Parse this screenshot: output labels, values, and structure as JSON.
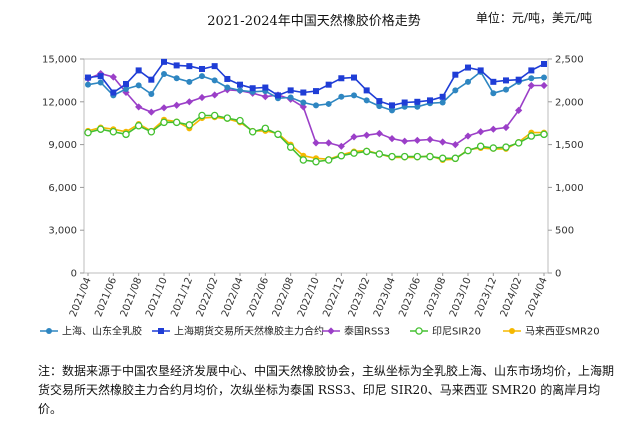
{
  "chart_data": {
    "type": "line",
    "title": "2021-2024年中国天然橡胶价格走势",
    "unit_label": "单位：元/吨，美元/吨",
    "x": [
      "2021/04",
      "2021/05",
      "2021/06",
      "2021/07",
      "2021/08",
      "2021/09",
      "2021/10",
      "2021/11",
      "2021/12",
      "2022/01",
      "2022/02",
      "2022/03",
      "2022/04",
      "2022/05",
      "2022/06",
      "2022/07",
      "2022/08",
      "2022/09",
      "2022/10",
      "2022/11",
      "2022/12",
      "2023/01",
      "2023/02",
      "2023/03",
      "2023/04",
      "2023/05",
      "2023/06",
      "2023/07",
      "2023/08",
      "2023/09",
      "2023/10",
      "2023/11",
      "2023/12",
      "2024/01",
      "2024/02",
      "2024/03",
      "2024/04"
    ],
    "x_tick_labels": [
      "2021/04",
      "2021/06",
      "2021/08",
      "2021/10",
      "2021/12",
      "2022/02",
      "2022/04",
      "2022/06",
      "2022/08",
      "2022/10",
      "2022/12",
      "2023/02",
      "2023/04",
      "2023/06",
      "2023/08",
      "2023/10",
      "2023/12",
      "2024/02",
      "2024/04"
    ],
    "y_left": {
      "min": 0,
      "max": 15000,
      "ticks": [
        "0",
        "3,000",
        "6,000",
        "9,000",
        "12,000",
        "15,000"
      ]
    },
    "y_right": {
      "min": 0,
      "max": 2500,
      "ticks": [
        "0",
        "500",
        "1,000",
        "1,500",
        "2,000",
        "2,500"
      ]
    },
    "grid": false,
    "legend_position": "bottom",
    "series": [
      {
        "name": "上海、山东全乳胶",
        "axis": "left",
        "color": "#2E86C1",
        "marker": "circle",
        "values": [
          13200,
          13350,
          12450,
          12900,
          13150,
          12550,
          13950,
          13650,
          13400,
          13800,
          13500,
          13000,
          12800,
          12700,
          12750,
          12250,
          12300,
          11950,
          11750,
          11850,
          12350,
          12450,
          12100,
          11700,
          11400,
          11650,
          11650,
          11900,
          11950,
          12800,
          13400,
          14100,
          12600,
          12850,
          13400,
          13650,
          13700
        ]
      },
      {
        "name": "上海期货交易所天然橡胶主力合约",
        "axis": "left",
        "color": "#1F3DD6",
        "marker": "square",
        "values": [
          13700,
          13800,
          12650,
          13250,
          14200,
          13550,
          14800,
          14550,
          14500,
          14300,
          14500,
          13600,
          13200,
          12950,
          13000,
          12450,
          12800,
          12650,
          12750,
          13200,
          13650,
          13700,
          12800,
          12050,
          11750,
          11950,
          12000,
          12100,
          12350,
          13900,
          14400,
          14200,
          13400,
          13500,
          13550,
          14200,
          14650
        ]
      },
      {
        "name": "泰国RSS3",
        "axis": "right",
        "color": "#9B3FC8",
        "marker": "diamond",
        "values": [
          2270,
          2330,
          2290,
          2110,
          1940,
          1880,
          1930,
          1960,
          2000,
          2050,
          2080,
          2140,
          2130,
          2100,
          2060,
          2080,
          2030,
          1940,
          1520,
          1520,
          1480,
          1590,
          1610,
          1630,
          1570,
          1540,
          1550,
          1560,
          1530,
          1500,
          1600,
          1650,
          1680,
          1700,
          1900,
          2190,
          2190
        ]
      },
      {
        "name": "印尼SIR20",
        "axis": "right",
        "color": "#44C030",
        "marker": "open-circle",
        "values": [
          1640,
          1680,
          1650,
          1620,
          1720,
          1650,
          1760,
          1760,
          1730,
          1840,
          1840,
          1810,
          1780,
          1650,
          1690,
          1620,
          1470,
          1320,
          1300,
          1320,
          1370,
          1400,
          1420,
          1390,
          1360,
          1360,
          1360,
          1360,
          1340,
          1340,
          1430,
          1480,
          1460,
          1470,
          1520,
          1600,
          1620
        ]
      },
      {
        "name": "马来西亚SMR20",
        "axis": "right",
        "color": "#F5B800",
        "marker": "circle",
        "values": [
          1660,
          1700,
          1680,
          1650,
          1740,
          1660,
          1790,
          1770,
          1690,
          1810,
          1820,
          1800,
          1760,
          1660,
          1660,
          1630,
          1500,
          1370,
          1340,
          1330,
          1380,
          1420,
          1430,
          1390,
          1350,
          1350,
          1350,
          1370,
          1320,
          1330,
          1440,
          1460,
          1450,
          1450,
          1530,
          1640,
          1640
        ]
      }
    ]
  },
  "note": "注：数据来源于中国农垦经济发展中心、中国天然橡胶协会，主纵坐标为全乳胶上海、山东市场均价，上海期货交易所天然橡胶主力合约月均价，次纵坐标为泰国 RSS3、印尼 SIR20、马来西亚 SMR20 的离岸月均价。"
}
